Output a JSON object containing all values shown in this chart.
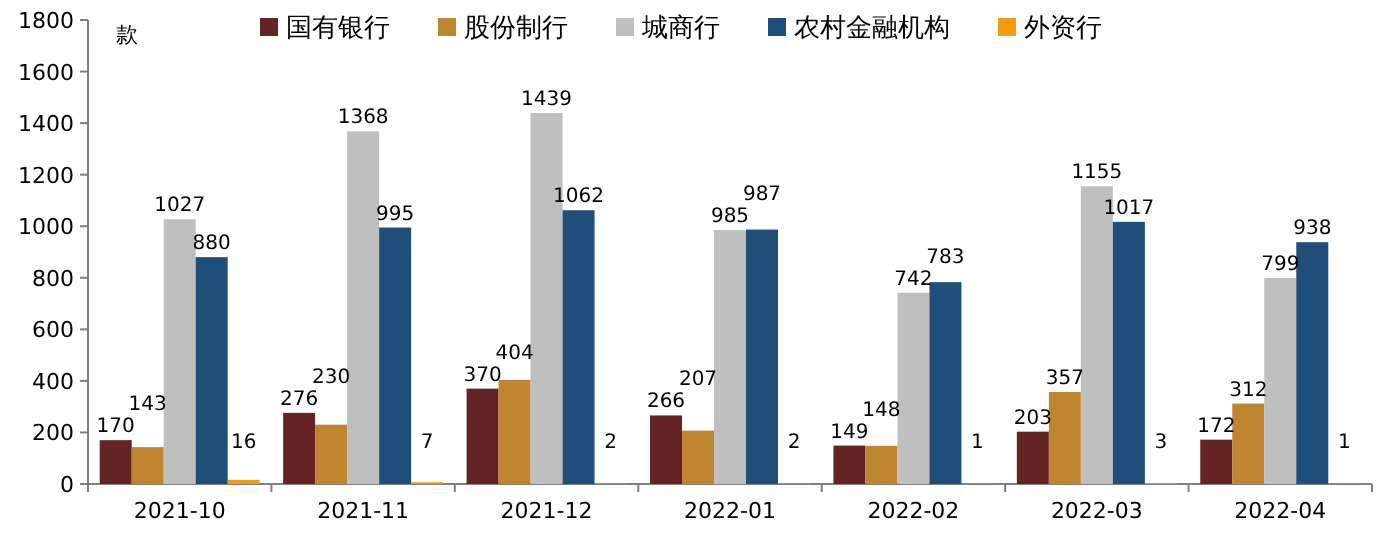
{
  "chart_data": {
    "type": "bar",
    "ylabel": "款",
    "categories": [
      "2021-10",
      "2021-11",
      "2021-12",
      "2022-01",
      "2022-02",
      "2022-03",
      "2022-04"
    ],
    "series": [
      {
        "name": "国有银行",
        "color": "#632423",
        "values": [
          170,
          276,
          370,
          266,
          149,
          203,
          172
        ]
      },
      {
        "name": "股份制行",
        "color": "#c0862f",
        "values": [
          143,
          230,
          404,
          207,
          148,
          357,
          312
        ]
      },
      {
        "name": "城商行",
        "color": "#bfbfbf",
        "values": [
          1027,
          1368,
          1439,
          985,
          742,
          1155,
          799
        ]
      },
      {
        "name": "农村金融机构",
        "color": "#1f4e79",
        "values": [
          880,
          995,
          1062,
          987,
          783,
          1017,
          938
        ]
      },
      {
        "name": "外资行",
        "color": "#f39c12",
        "values": [
          16,
          7,
          2,
          2,
          1,
          3,
          1
        ]
      }
    ],
    "ylim": [
      0,
      1800
    ],
    "yticks": [
      0,
      200,
      400,
      600,
      800,
      1000,
      1200,
      1400,
      1600,
      1800
    ],
    "data_labels": true,
    "legend": "top",
    "grid": false
  }
}
